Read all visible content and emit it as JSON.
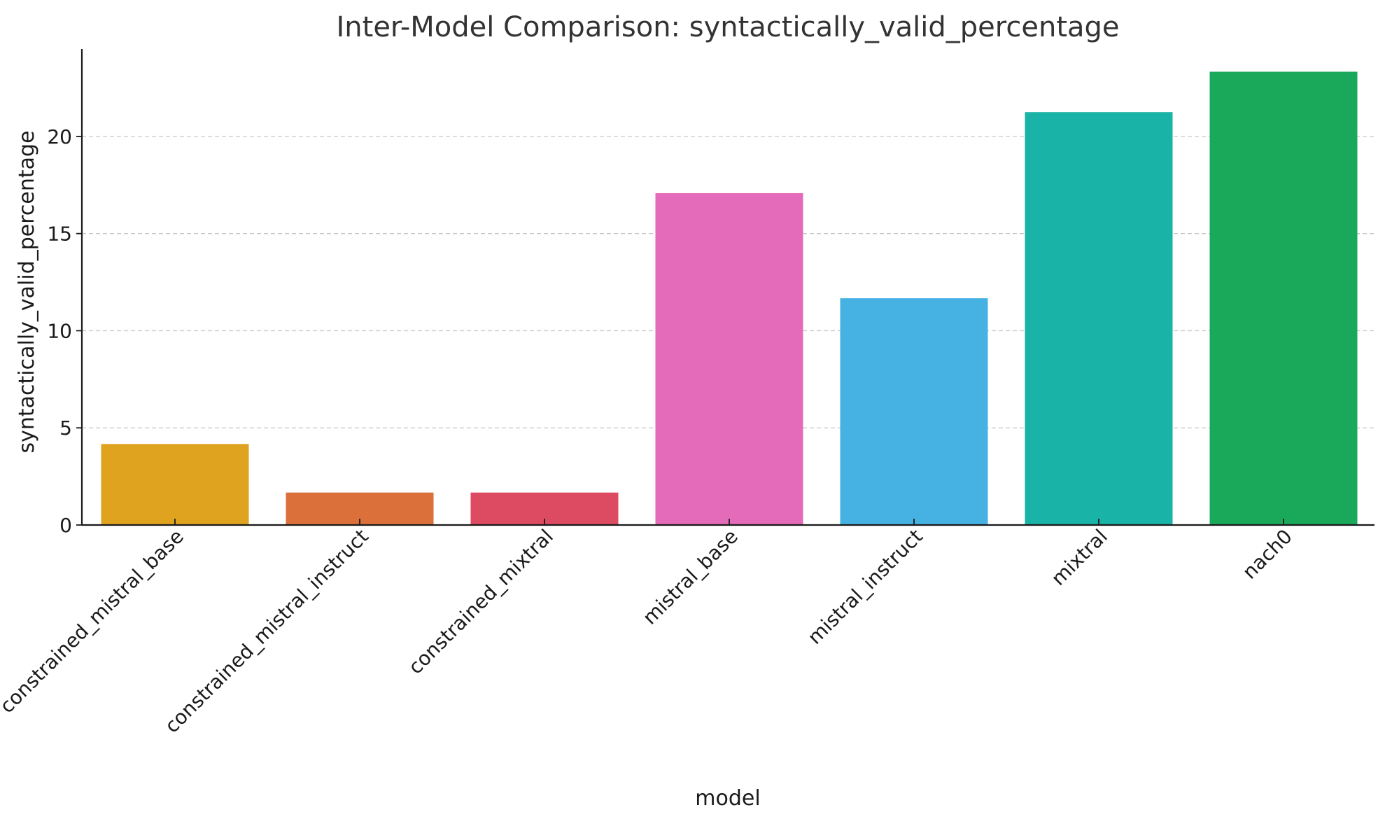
{
  "chart_data": {
    "type": "bar",
    "title": "Inter-Model Comparison: syntactically_valid_percentage",
    "xlabel": "model",
    "ylabel": "syntactically_valid_percentage",
    "categories": [
      "constrained_mistral_base",
      "constrained_mistral_instruct",
      "constrained_mixtral",
      "mistral_base",
      "mistral_instruct",
      "mixtral",
      "nach0"
    ],
    "values": [
      4.17,
      1.67,
      1.67,
      17.08,
      11.67,
      21.25,
      23.33
    ],
    "colors": [
      "#e0a31f",
      "#db703a",
      "#dc4b62",
      "#e46bb9",
      "#45b2e3",
      "#1ab3a7",
      "#1aa95b"
    ],
    "yticks": [
      0,
      5,
      10,
      15,
      20
    ],
    "ylim": [
      0,
      24.5
    ],
    "grid": true,
    "legend": "none"
  }
}
